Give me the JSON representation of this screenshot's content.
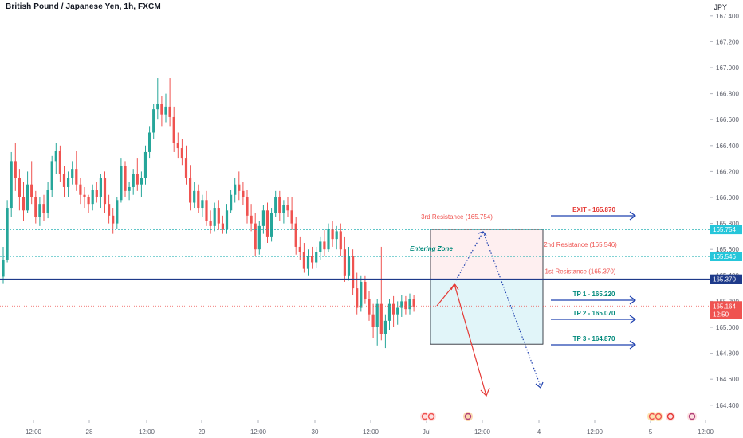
{
  "chart_data": {
    "type": "candlestick",
    "title": "British Pound / Japanese Yen, 1h, FXCM",
    "currency": "JPY",
    "ylim": [
      164.2,
      167.6
    ],
    "y_ticks": [
      "167.400",
      "167.200",
      "167.000",
      "166.800",
      "166.600",
      "166.400",
      "166.200",
      "166.000",
      "165.800",
      "165.600",
      "165.400",
      "165.200",
      "165.000",
      "164.800",
      "164.600",
      "164.400"
    ],
    "x_ticks": [
      "12:00",
      "28",
      "12:00",
      "29",
      "12:00",
      "30",
      "12:00",
      "Jul",
      "12:00",
      "4",
      "12:00",
      "5",
      "12:00"
    ],
    "candles": [
      [
        165.39,
        165.62,
        165.34,
        165.52
      ],
      [
        165.52,
        165.98,
        165.5,
        165.92
      ],
      [
        165.92,
        166.35,
        165.85,
        166.28
      ],
      [
        166.28,
        166.42,
        166.05,
        166.15
      ],
      [
        166.15,
        166.22,
        165.9,
        166.0
      ],
      [
        166.0,
        166.12,
        165.82,
        165.9
      ],
      [
        165.9,
        166.2,
        165.88,
        166.1
      ],
      [
        166.1,
        166.28,
        165.95,
        166.0
      ],
      [
        166.0,
        166.05,
        165.8,
        165.85
      ],
      [
        165.85,
        166.0,
        165.78,
        165.95
      ],
      [
        165.95,
        166.02,
        165.82,
        165.88
      ],
      [
        165.88,
        166.12,
        165.84,
        166.06
      ],
      [
        166.06,
        166.32,
        166.0,
        166.28
      ],
      [
        166.28,
        166.42,
        166.18,
        166.36
      ],
      [
        166.36,
        166.4,
        166.12,
        166.18
      ],
      [
        166.18,
        166.24,
        166.0,
        166.08
      ],
      [
        166.08,
        166.2,
        166.0,
        166.15
      ],
      [
        166.15,
        166.28,
        166.1,
        166.22
      ],
      [
        166.22,
        166.36,
        166.05,
        166.1
      ],
      [
        166.1,
        166.15,
        165.95,
        166.02
      ],
      [
        166.02,
        166.08,
        165.92,
        166.0
      ],
      [
        166.0,
        166.02,
        165.88,
        165.95
      ],
      [
        165.95,
        166.1,
        165.9,
        166.06
      ],
      [
        166.06,
        166.12,
        165.96,
        166.0
      ],
      [
        166.0,
        166.18,
        165.92,
        166.15
      ],
      [
        166.15,
        166.2,
        165.88,
        165.95
      ],
      [
        165.95,
        166.02,
        165.8,
        165.86
      ],
      [
        165.86,
        165.92,
        165.72,
        165.8
      ],
      [
        165.8,
        166.0,
        165.76,
        165.98
      ],
      [
        165.98,
        166.3,
        165.96,
        166.24
      ],
      [
        166.24,
        166.28,
        166.0,
        166.05
      ],
      [
        166.05,
        166.12,
        165.98,
        166.08
      ],
      [
        166.08,
        166.22,
        166.02,
        166.18
      ],
      [
        166.18,
        166.3,
        166.05,
        166.1
      ],
      [
        166.1,
        166.2,
        166.0,
        166.15
      ],
      [
        166.15,
        166.4,
        166.1,
        166.35
      ],
      [
        166.35,
        166.55,
        166.3,
        166.5
      ],
      [
        166.5,
        166.72,
        166.45,
        166.68
      ],
      [
        166.68,
        166.92,
        166.6,
        166.72
      ],
      [
        166.72,
        166.78,
        166.55,
        166.64
      ],
      [
        166.64,
        166.8,
        166.58,
        166.7
      ],
      [
        166.7,
        166.92,
        166.55,
        166.62
      ],
      [
        166.62,
        166.7,
        166.35,
        166.42
      ],
      [
        166.42,
        166.5,
        166.3,
        166.38
      ],
      [
        166.38,
        166.45,
        166.25,
        166.3
      ],
      [
        166.3,
        166.4,
        166.1,
        166.15
      ],
      [
        166.15,
        166.25,
        165.9,
        165.96
      ],
      [
        165.96,
        166.12,
        165.92,
        166.05
      ],
      [
        166.05,
        166.1,
        165.88,
        165.92
      ],
      [
        165.92,
        166.02,
        165.85,
        165.98
      ],
      [
        165.98,
        166.05,
        165.78,
        165.82
      ],
      [
        165.82,
        165.9,
        165.72,
        165.78
      ],
      [
        165.78,
        165.96,
        165.74,
        165.92
      ],
      [
        165.92,
        165.98,
        165.75,
        165.8
      ],
      [
        165.8,
        165.86,
        165.72,
        165.76
      ],
      [
        165.76,
        165.95,
        165.72,
        165.9
      ],
      [
        165.9,
        166.06,
        165.88,
        166.02
      ],
      [
        166.02,
        166.15,
        165.96,
        166.1
      ],
      [
        166.1,
        166.2,
        165.98,
        166.05
      ],
      [
        166.05,
        166.12,
        165.94,
        166.0
      ],
      [
        166.0,
        166.06,
        165.8,
        165.86
      ],
      [
        165.86,
        165.95,
        165.74,
        165.8
      ],
      [
        165.8,
        165.88,
        165.55,
        165.6
      ],
      [
        165.6,
        165.82,
        165.56,
        165.78
      ],
      [
        165.78,
        165.94,
        165.72,
        165.9
      ],
      [
        165.9,
        165.96,
        165.65,
        165.7
      ],
      [
        165.7,
        165.92,
        165.66,
        165.88
      ],
      [
        165.88,
        166.05,
        165.85,
        166.0
      ],
      [
        166.0,
        166.05,
        165.82,
        165.88
      ],
      [
        165.88,
        165.98,
        165.8,
        165.94
      ],
      [
        165.94,
        166.0,
        165.85,
        165.9
      ],
      [
        165.9,
        166.0,
        165.75,
        165.8
      ],
      [
        165.8,
        165.85,
        165.56,
        165.62
      ],
      [
        165.62,
        165.7,
        165.52,
        165.58
      ],
      [
        165.58,
        165.65,
        165.42,
        165.45
      ],
      [
        165.45,
        165.6,
        165.4,
        165.55
      ],
      [
        165.55,
        165.62,
        165.45,
        165.5
      ],
      [
        165.5,
        165.62,
        165.46,
        165.58
      ],
      [
        165.58,
        165.7,
        165.52,
        165.66
      ],
      [
        165.66,
        165.75,
        165.55,
        165.6
      ],
      [
        165.6,
        165.8,
        165.58,
        165.76
      ],
      [
        165.76,
        165.82,
        165.62,
        165.68
      ],
      [
        165.68,
        165.78,
        165.6,
        165.74
      ],
      [
        165.74,
        165.8,
        165.55,
        165.6
      ],
      [
        165.6,
        165.7,
        165.35,
        165.4
      ],
      [
        165.4,
        165.62,
        165.36,
        165.55
      ],
      [
        165.55,
        165.6,
        165.25,
        165.3
      ],
      [
        165.3,
        165.42,
        165.1,
        165.15
      ],
      [
        165.15,
        165.4,
        165.12,
        165.35
      ],
      [
        165.35,
        165.4,
        165.18,
        165.22
      ],
      [
        165.22,
        165.28,
        165.05,
        165.1
      ],
      [
        165.1,
        165.18,
        164.92,
        165.0
      ],
      [
        165.0,
        165.22,
        164.86,
        165.18
      ],
      [
        165.18,
        165.62,
        164.9,
        164.95
      ],
      [
        164.95,
        165.1,
        164.84,
        165.05
      ],
      [
        165.05,
        165.22,
        164.98,
        165.18
      ],
      [
        165.18,
        165.24,
        165.0,
        165.1
      ],
      [
        165.1,
        165.2,
        165.02,
        165.15
      ],
      [
        165.15,
        165.25,
        165.08,
        165.2
      ],
      [
        165.2,
        165.24,
        165.1,
        165.14
      ],
      [
        165.14,
        165.26,
        165.1,
        165.22
      ],
      [
        165.22,
        165.25,
        165.12,
        165.16
      ]
    ],
    "lines": {
      "solid": 165.37,
      "dotted": [
        165.754,
        165.546
      ],
      "price": 165.164
    },
    "labels": {
      "r3": "3rd Resistance (165.754)",
      "r2": "2nd Resistance (165.546)",
      "r1": "1st Resistance (165.370)",
      "exit": "EXIT - 165.870",
      "tp1": "TP 1 - 165.220",
      "tp2": "TP 2 - 165.070",
      "tp3": "TP 3 - 164.870",
      "zone": "Entering Zone"
    },
    "zones": {
      "upper": [
        165.37,
        165.754
      ],
      "lower": [
        164.87,
        165.37
      ]
    },
    "badges": {
      "r3": "165.754",
      "r2": "165.546",
      "r1": "165.370",
      "price": "165.164",
      "countdown": "12:50"
    },
    "colors": {
      "up": "#26a69a",
      "down": "#ef5350",
      "solid_line": "#1e3a8a",
      "dotted_line": "#00a5a8",
      "arrow_blue": "#1e40af",
      "arrow_red": "#e53935",
      "teal_badge": "#26c6da",
      "navy_badge": "#1e3a8a",
      "price_badge": "#ef5350"
    }
  }
}
